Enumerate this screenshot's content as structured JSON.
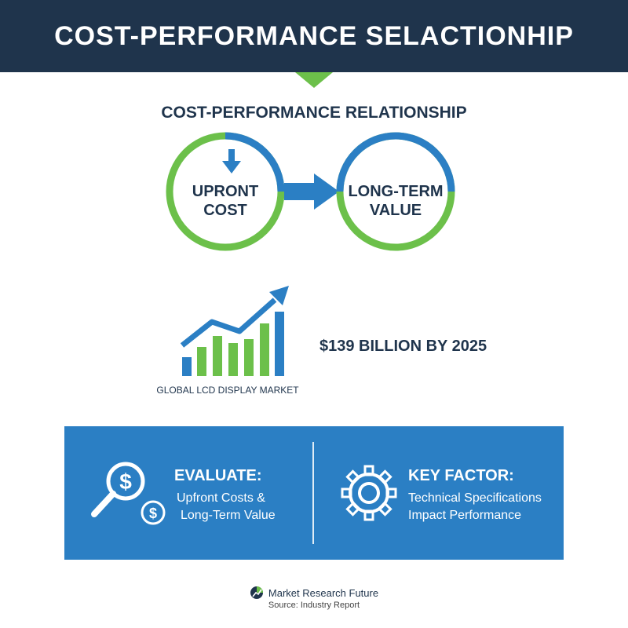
{
  "header": {
    "title": "COST-PERFORMANCE SELACTIONHIP"
  },
  "subtitle": "COST-PERFORMANCE RELATIONSHIP",
  "relationship": {
    "left": {
      "line1": "UPRONT",
      "line2": "COST"
    },
    "right": {
      "line1": "LONG-TERM",
      "line2": "VALUE"
    }
  },
  "market": {
    "stat": "$139 BILLION BY 2025",
    "caption": "GLOBAL LCD DISPLAY MARKET"
  },
  "panel": {
    "left": {
      "heading": "EVALUATE:",
      "line1": "Upfront Costs &",
      "line2": "Long-Term Value"
    },
    "right": {
      "heading": "KEY FACTOR:",
      "line1": "Technical Specifications",
      "line2": "Impact Performance"
    }
  },
  "footer": {
    "brand": "Market Research Future",
    "source": "Source: Industry Report"
  },
  "colors": {
    "navy": "#1f344c",
    "blue": "#2b7fc4",
    "green": "#6cc04a"
  }
}
